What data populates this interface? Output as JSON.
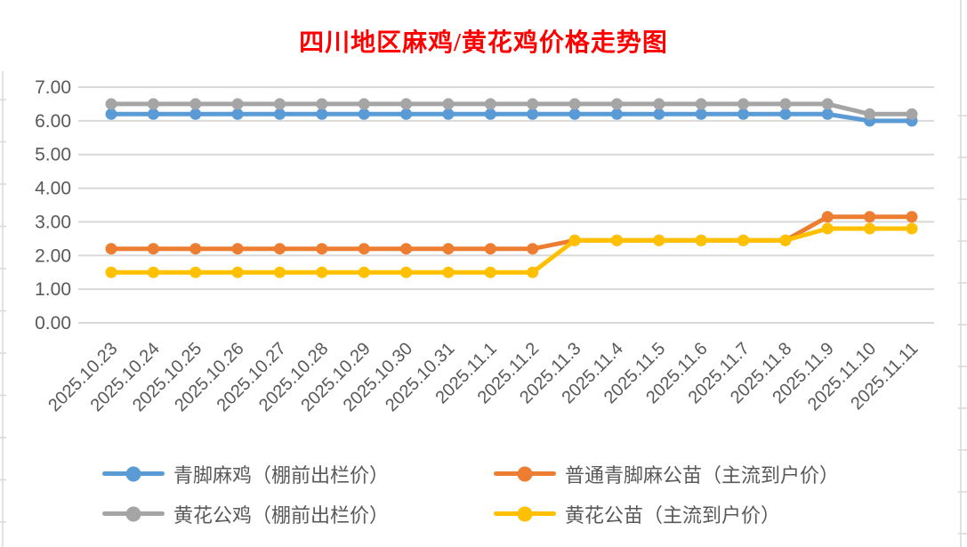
{
  "title": "四川地区麻鸡/黄花鸡价格走势图",
  "chart_data": {
    "type": "line",
    "categories": [
      "2025.10.23",
      "2025.10.24",
      "2025.10.25",
      "2025.10.26",
      "2025.10.27",
      "2025.10.28",
      "2025.10.29",
      "2025.10.30",
      "2025.10.31",
      "2025.11.1",
      "2025.11.2",
      "2025.11.3",
      "2025.11.4",
      "2025.11.5",
      "2025.11.6",
      "2025.11.7",
      "2025.11.8",
      "2025.11.9",
      "2025.11.10",
      "2025.11.11"
    ],
    "series": [
      {
        "name": "青脚麻鸡（棚前出栏价）",
        "color": "#5B9BD5",
        "values": [
          6.2,
          6.2,
          6.2,
          6.2,
          6.2,
          6.2,
          6.2,
          6.2,
          6.2,
          6.2,
          6.2,
          6.2,
          6.2,
          6.2,
          6.2,
          6.2,
          6.2,
          6.2,
          6.0,
          6.0
        ]
      },
      {
        "name": "普通青脚麻公苗（主流到户价）",
        "color": "#ED7D31",
        "values": [
          2.2,
          2.2,
          2.2,
          2.2,
          2.2,
          2.2,
          2.2,
          2.2,
          2.2,
          2.2,
          2.2,
          2.45,
          2.45,
          2.45,
          2.45,
          2.45,
          2.45,
          3.15,
          3.15,
          3.15
        ]
      },
      {
        "name": "黄花公鸡（棚前出栏价）",
        "color": "#A5A5A5",
        "values": [
          6.5,
          6.5,
          6.5,
          6.5,
          6.5,
          6.5,
          6.5,
          6.5,
          6.5,
          6.5,
          6.5,
          6.5,
          6.5,
          6.5,
          6.5,
          6.5,
          6.5,
          6.5,
          6.2,
          6.2
        ]
      },
      {
        "name": "黄花公苗（主流到户价）",
        "color": "#FFC000",
        "values": [
          1.5,
          1.5,
          1.5,
          1.5,
          1.5,
          1.5,
          1.5,
          1.5,
          1.5,
          1.5,
          1.5,
          2.45,
          2.45,
          2.45,
          2.45,
          2.45,
          2.45,
          2.8,
          2.8,
          2.8
        ]
      }
    ],
    "ylim": [
      0,
      7
    ],
    "ytick_step": 1,
    "y_ticks": [
      "0.00",
      "1.00",
      "2.00",
      "3.00",
      "4.00",
      "5.00",
      "6.00",
      "7.00"
    ],
    "x_tick_rotation": 45,
    "xlabel": "",
    "ylabel": "",
    "grid": "horizontal",
    "legend_position": "bottom",
    "legend_rows": [
      [
        0,
        1
      ],
      [
        2,
        3
      ]
    ]
  },
  "colors": {
    "title": "#FF0000",
    "axis_text": "#595959",
    "gridline": "#D9D9D9",
    "sheet_edge": "#D9D9D9",
    "background": "#FFFFFF"
  }
}
